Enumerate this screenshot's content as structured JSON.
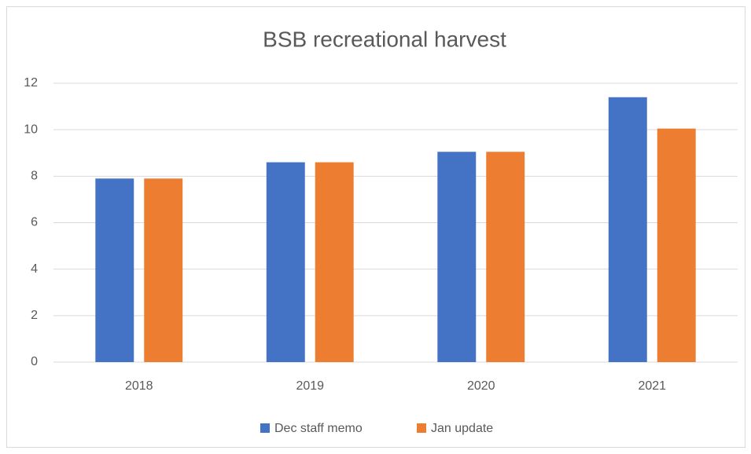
{
  "chart_data": {
    "type": "bar",
    "title": "BSB recreational harvest",
    "categories": [
      "2018",
      "2019",
      "2020",
      "2021"
    ],
    "series": [
      {
        "name": "Dec staff memo",
        "color": "#4472c4",
        "values": [
          7.9,
          8.6,
          9.05,
          11.4
        ]
      },
      {
        "name": "Jan update",
        "color": "#ed7d31",
        "values": [
          7.9,
          8.6,
          9.05,
          10.05
        ]
      }
    ],
    "ylim": [
      0,
      12
    ],
    "yticks": [
      0,
      2,
      4,
      6,
      8,
      10,
      12
    ],
    "grid": true,
    "legend": "bottom"
  }
}
